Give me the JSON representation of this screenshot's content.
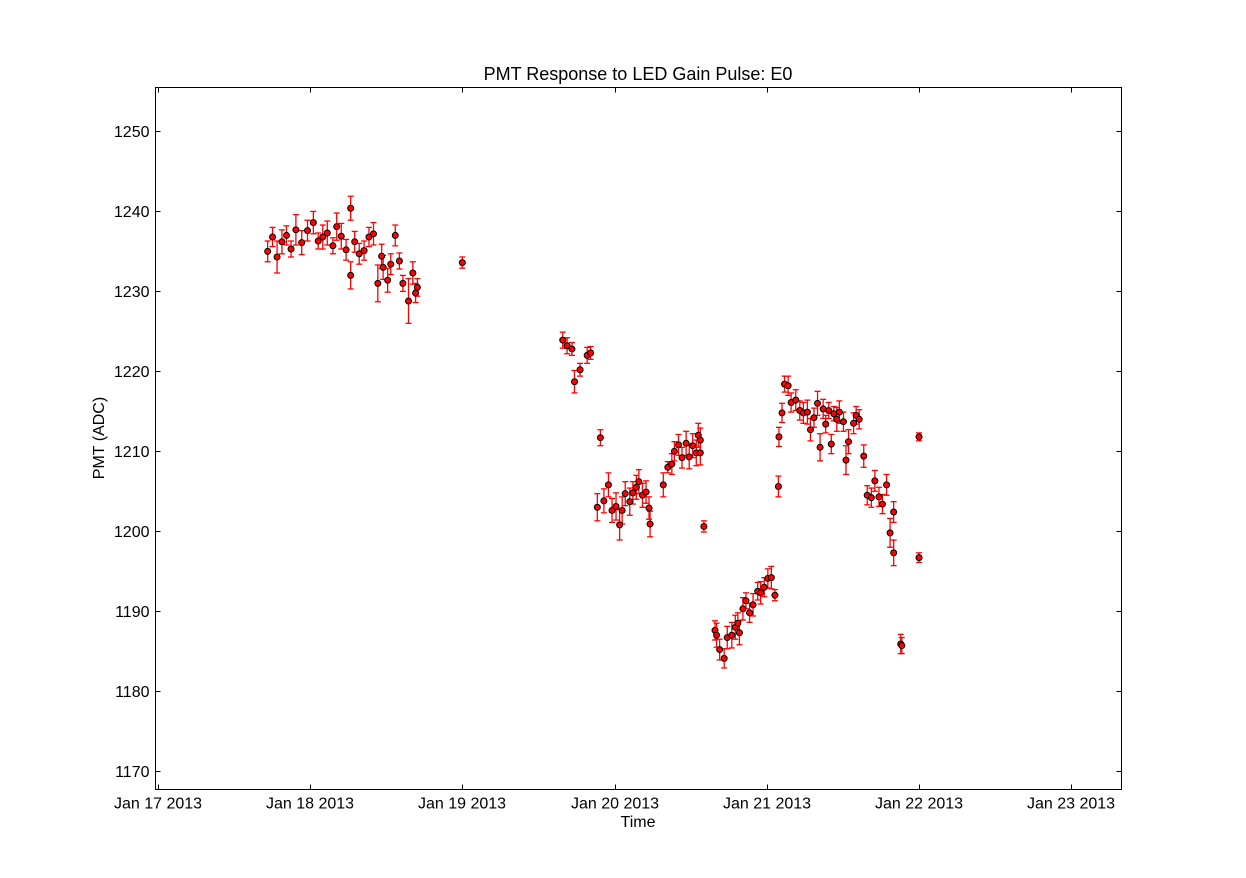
{
  "chart_data": {
    "type": "scatter",
    "title": "PMT Response to LED Gain Pulse: E0",
    "xlabel": "Time",
    "ylabel": "PMT (ADC)",
    "x_tick_labels": [
      "Jan 17 2013",
      "Jan 18 2013",
      "Jan 19 2013",
      "Jan 20 2013",
      "Jan 21 2013",
      "Jan 22 2013",
      "Jan 23 2013"
    ],
    "y_ticks": [
      1170,
      1180,
      1190,
      1200,
      1210,
      1220,
      1230,
      1240,
      1250
    ],
    "xlim": [
      "2013-01-16T23:38",
      "2013-01-23T07:55"
    ],
    "ylim": [
      1167.7,
      1255.5
    ],
    "grid": false,
    "legend": "none",
    "series": [
      {
        "marker_color": "#ff0000",
        "errorbar_color": "#ff0000",
        "points": [
          [
            "2013-01-17T17:19",
            1235.0,
            1.3
          ],
          [
            "2013-01-17T18:05",
            1236.8,
            1.2
          ],
          [
            "2013-01-17T18:48",
            1234.3,
            2.0
          ],
          [
            "2013-01-17T19:34",
            1236.2,
            1.5
          ],
          [
            "2013-01-17T20:17",
            1237.0,
            1.2
          ],
          [
            "2013-01-17T21:00",
            1235.3,
            1.0
          ],
          [
            "2013-01-17T21:46",
            1237.7,
            1.9
          ],
          [
            "2013-01-17T22:41",
            1236.1,
            1.5
          ],
          [
            "2013-01-17T23:36",
            1237.6,
            1.3
          ],
          [
            "2013-01-18T00:31",
            1238.6,
            1.4
          ],
          [
            "2013-01-18T01:17",
            1236.3,
            1.0
          ],
          [
            "2013-01-18T02:00",
            1236.8,
            1.5
          ],
          [
            "2013-01-18T02:43",
            1237.3,
            1.5
          ],
          [
            "2013-01-18T03:36",
            1235.7,
            1.0
          ],
          [
            "2013-01-18T04:12",
            1238.1,
            1.7
          ],
          [
            "2013-01-18T04:55",
            1236.9,
            1.6
          ],
          [
            "2013-01-18T05:41",
            1235.2,
            1.3
          ],
          [
            "2013-01-18T06:24",
            1240.4,
            1.5
          ],
          [
            "2013-01-18T06:24",
            1232.0,
            1.7
          ],
          [
            "2013-01-18T07:02",
            1236.2,
            1.3
          ],
          [
            "2013-01-18T07:45",
            1234.7,
            1.3
          ],
          [
            "2013-01-18T08:31",
            1235.1,
            1.2
          ],
          [
            "2013-01-18T09:17",
            1236.8,
            1.2
          ],
          [
            "2013-01-18T10:00",
            1237.2,
            1.4
          ],
          [
            "2013-01-18T10:41",
            1231.0,
            2.3
          ],
          [
            "2013-01-18T11:17",
            1234.4,
            1.5
          ],
          [
            "2013-01-18T11:31",
            1233.0,
            1.5
          ],
          [
            "2013-01-18T12:14",
            1231.4,
            1.5
          ],
          [
            "2013-01-18T12:43",
            1233.4,
            1.3
          ],
          [
            "2013-01-18T13:26",
            1237.0,
            1.3
          ],
          [
            "2013-01-18T14:05",
            1233.8,
            1.0
          ],
          [
            "2013-01-18T14:38",
            1231.0,
            1.0
          ],
          [
            "2013-01-18T15:31",
            1228.8,
            2.8
          ],
          [
            "2013-01-18T16:12",
            1232.3,
            1.4
          ],
          [
            "2013-01-18T16:38",
            1229.8,
            1.2
          ],
          [
            "2013-01-18T16:55",
            1230.5,
            1.1
          ],
          [
            "2013-01-19T00:00",
            1233.6,
            0.7
          ],
          [
            "2013-01-19T15:50",
            1223.9,
            1.0
          ],
          [
            "2013-01-19T16:31",
            1223.2,
            1.0
          ],
          [
            "2013-01-19T17:17",
            1222.8,
            0.8
          ],
          [
            "2013-01-19T17:41",
            1218.7,
            1.4
          ],
          [
            "2013-01-19T18:34",
            1220.2,
            0.8
          ],
          [
            "2013-01-19T19:41",
            1222.0,
            1.0
          ],
          [
            "2013-01-19T20:14",
            1222.3,
            0.8
          ],
          [
            "2013-01-19T21:17",
            1203.0,
            1.7
          ],
          [
            "2013-01-19T21:46",
            1211.7,
            1.0
          ],
          [
            "2013-01-19T22:19",
            1203.8,
            1.5
          ],
          [
            "2013-01-19T23:02",
            1205.8,
            1.5
          ],
          [
            "2013-01-19T23:36",
            1202.6,
            1.5
          ],
          [
            "2013-01-20T00:14",
            1203.1,
            1.7
          ],
          [
            "2013-01-20T00:48",
            1200.8,
            1.9
          ],
          [
            "2013-01-20T01:12",
            1202.6,
            1.7
          ],
          [
            "2013-01-20T01:41",
            1204.7,
            1.5
          ],
          [
            "2013-01-20T02:24",
            1203.7,
            1.7
          ],
          [
            "2013-01-20T02:53",
            1204.8,
            1.4
          ],
          [
            "2013-01-20T03:26",
            1205.5,
            1.5
          ],
          [
            "2013-01-20T03:50",
            1206.2,
            1.5
          ],
          [
            "2013-01-20T04:24",
            1204.5,
            1.5
          ],
          [
            "2013-01-20T04:58",
            1204.9,
            1.4
          ],
          [
            "2013-01-20T05:26",
            1202.9,
            1.4
          ],
          [
            "2013-01-20T05:36",
            1200.9,
            1.6
          ],
          [
            "2013-01-20T07:41",
            1205.8,
            1.5
          ],
          [
            "2013-01-20T08:24",
            1208.0,
            0.7
          ],
          [
            "2013-01-20T09:02",
            1208.4,
            1.3
          ],
          [
            "2013-01-20T09:26",
            1210.0,
            1.2
          ],
          [
            "2013-01-20T10:05",
            1210.8,
            1.3
          ],
          [
            "2013-01-20T10:38",
            1209.2,
            1.3
          ],
          [
            "2013-01-20T11:17",
            1211.0,
            1.5
          ],
          [
            "2013-01-20T11:46",
            1209.3,
            1.5
          ],
          [
            "2013-01-20T12:19",
            1210.7,
            1.5
          ],
          [
            "2013-01-20T12:53",
            1209.8,
            1.6
          ],
          [
            "2013-01-20T13:12",
            1212.0,
            1.5
          ],
          [
            "2013-01-20T13:31",
            1211.4,
            1.5
          ],
          [
            "2013-01-20T13:31",
            1209.8,
            1.5
          ],
          [
            "2013-01-20T14:05",
            1200.6,
            0.7
          ],
          [
            "2013-01-20T15:50",
            1187.6,
            1.2
          ],
          [
            "2013-01-20T16:05",
            1187.0,
            1.5
          ],
          [
            "2013-01-20T16:34",
            1185.2,
            1.3
          ],
          [
            "2013-01-20T17:17",
            1184.1,
            1.2
          ],
          [
            "2013-01-20T17:46",
            1186.7,
            1.4
          ],
          [
            "2013-01-20T18:29",
            1187.0,
            1.6
          ],
          [
            "2013-01-20T19:02",
            1188.0,
            1.5
          ],
          [
            "2013-01-20T19:26",
            1188.5,
            1.3
          ],
          [
            "2013-01-20T19:41",
            1187.3,
            1.5
          ],
          [
            "2013-01-20T20:14",
            1190.3,
            1.4
          ],
          [
            "2013-01-20T20:43",
            1191.3,
            1.0
          ],
          [
            "2013-01-20T21:17",
            1189.8,
            1.2
          ],
          [
            "2013-01-20T21:50",
            1190.8,
            1.4
          ],
          [
            "2013-01-20T22:34",
            1192.5,
            1.1
          ],
          [
            "2013-01-20T23:02",
            1192.3,
            1.4
          ],
          [
            "2013-01-20T23:36",
            1193.0,
            1.2
          ],
          [
            "2013-01-21T00:10",
            1194.1,
            1.2
          ],
          [
            "2013-01-21T00:43",
            1194.2,
            1.4
          ],
          [
            "2013-01-21T01:17",
            1192.0,
            0.7
          ],
          [
            "2013-01-21T01:50",
            1205.6,
            1.3
          ],
          [
            "2013-01-21T01:55",
            1211.8,
            1.2
          ],
          [
            "2013-01-21T02:24",
            1214.8,
            1.2
          ],
          [
            "2013-01-21T02:48",
            1218.4,
            1.0
          ],
          [
            "2013-01-21T03:22",
            1218.2,
            1.2
          ],
          [
            "2013-01-21T03:50",
            1216.1,
            1.2
          ],
          [
            "2013-01-21T04:34",
            1216.4,
            1.3
          ],
          [
            "2013-01-21T05:12",
            1215.1,
            1.2
          ],
          [
            "2013-01-21T05:46",
            1214.8,
            1.3
          ],
          [
            "2013-01-21T06:24",
            1214.9,
            1.5
          ],
          [
            "2013-01-21T06:53",
            1212.7,
            1.4
          ],
          [
            "2013-01-21T07:26",
            1214.2,
            1.2
          ],
          [
            "2013-01-21T08:00",
            1216.0,
            1.5
          ],
          [
            "2013-01-21T08:24",
            1210.5,
            1.7
          ],
          [
            "2013-01-21T08:53",
            1215.3,
            1.2
          ],
          [
            "2013-01-21T09:17",
            1213.4,
            1.1
          ],
          [
            "2013-01-21T09:46",
            1215.1,
            1.0
          ],
          [
            "2013-01-21T10:10",
            1210.9,
            1.2
          ],
          [
            "2013-01-21T10:34",
            1214.7,
            0.9
          ],
          [
            "2013-01-21T11:02",
            1214.0,
            1.5
          ],
          [
            "2013-01-21T11:26",
            1214.9,
            1.4
          ],
          [
            "2013-01-21T12:05",
            1213.7,
            1.2
          ],
          [
            "2013-01-21T12:29",
            1208.9,
            1.8
          ],
          [
            "2013-01-21T12:53",
            1211.2,
            1.5
          ],
          [
            "2013-01-21T13:41",
            1213.5,
            1.3
          ],
          [
            "2013-01-21T14:05",
            1214.5,
            1.1
          ],
          [
            "2013-01-21T14:34",
            1214.0,
            1.2
          ],
          [
            "2013-01-21T15:17",
            1209.4,
            1.4
          ],
          [
            "2013-01-21T15:50",
            1204.5,
            1.2
          ],
          [
            "2013-01-21T16:29",
            1204.2,
            1.2
          ],
          [
            "2013-01-21T17:02",
            1206.3,
            1.3
          ],
          [
            "2013-01-21T17:41",
            1204.3,
            1.2
          ],
          [
            "2013-01-21T18:14",
            1203.4,
            1.2
          ],
          [
            "2013-01-21T18:53",
            1205.8,
            1.3
          ],
          [
            "2013-01-21T19:26",
            1199.8,
            1.8
          ],
          [
            "2013-01-21T20:00",
            1202.4,
            1.3
          ],
          [
            "2013-01-21T20:00",
            1197.3,
            1.6
          ],
          [
            "2013-01-21T21:07",
            1185.9,
            1.2
          ],
          [
            "2013-01-21T21:17",
            1185.7,
            1.0
          ],
          [
            "2013-01-22T00:00",
            1211.8,
            0.5
          ],
          [
            "2013-01-22T00:00",
            1196.7,
            0.6
          ]
        ]
      }
    ]
  }
}
